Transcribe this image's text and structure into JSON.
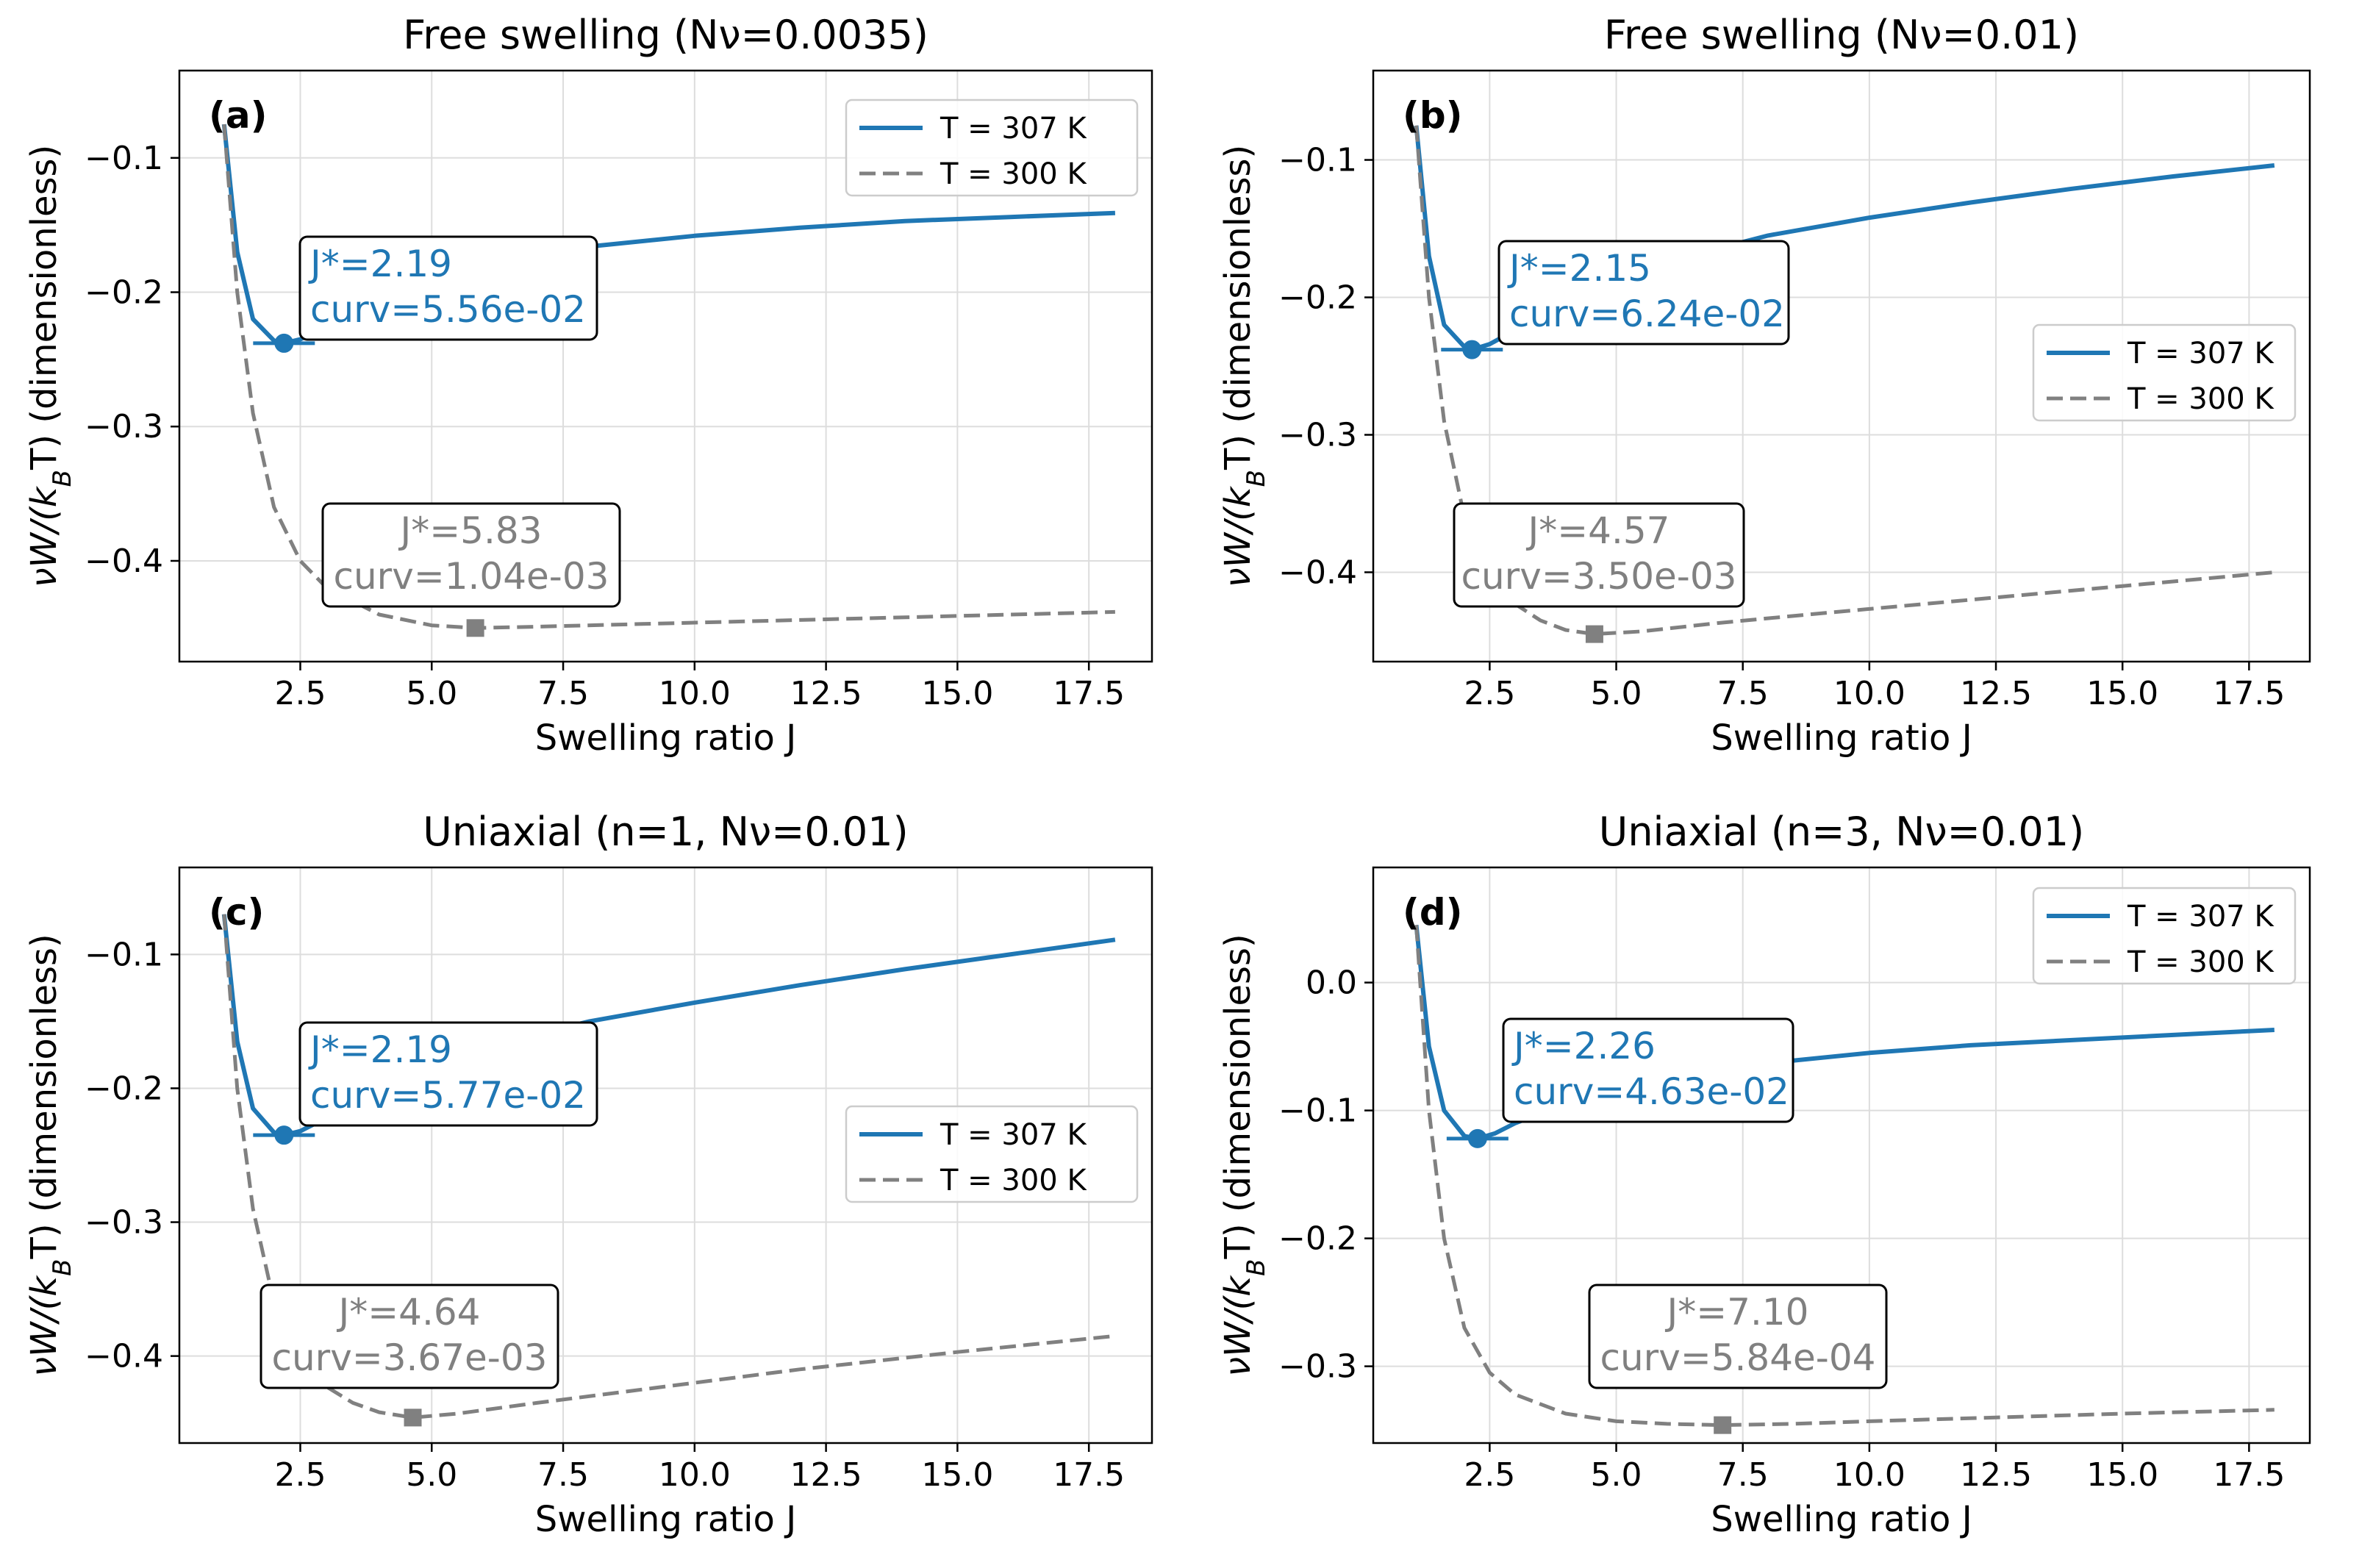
{
  "figure": {
    "colors": {
      "t307": "#1f77b4",
      "t300": "#808080",
      "grid": "#dddddd",
      "axes": "#000000"
    }
  },
  "chart_data": [
    {
      "type": "line",
      "panel_label": "(a)",
      "title": "Free swelling (Nν=0.0035)",
      "xlabel": "Swelling ratio J",
      "ylabel": "νW/(k_BT) (dimensionless)",
      "xlim": [
        0.2,
        18.7
      ],
      "ylim": [
        -0.475,
        -0.035
      ],
      "xticks": [
        2.5,
        5.0,
        7.5,
        10.0,
        12.5,
        15.0,
        17.5
      ],
      "xtick_labels": [
        "2.5",
        "5.0",
        "7.5",
        "10.0",
        "12.5",
        "15.0",
        "17.5"
      ],
      "yticks": [
        -0.1,
        -0.2,
        -0.3,
        -0.4
      ],
      "ytick_labels": [
        "−0.1",
        "−0.2",
        "−0.3",
        "−0.4"
      ],
      "grid": true,
      "legend_position": "top-right",
      "series": [
        {
          "name": "T = 307 K",
          "style": "solid",
          "color": "#1f77b4",
          "x": [
            1.05,
            1.3,
            1.6,
            2.0,
            2.19,
            2.5,
            3.0,
            4.0,
            5.0,
            6.0,
            8.0,
            10.0,
            12.0,
            14.0,
            16.0,
            18.0
          ],
          "y": [
            -0.075,
            -0.17,
            -0.22,
            -0.236,
            -0.238,
            -0.235,
            -0.226,
            -0.206,
            -0.19,
            -0.18,
            -0.166,
            -0.158,
            -0.152,
            -0.147,
            -0.144,
            -0.141
          ],
          "minimum": {
            "x": 2.19,
            "y": -0.238
          }
        },
        {
          "name": "T = 300 K",
          "style": "dashed",
          "color": "#808080",
          "x": [
            1.05,
            1.3,
            1.6,
            2.0,
            2.5,
            3.0,
            4.0,
            5.0,
            5.83,
            7.0,
            9.0,
            12.0,
            15.0,
            18.0
          ],
          "y": [
            -0.075,
            -0.2,
            -0.29,
            -0.36,
            -0.4,
            -0.42,
            -0.44,
            -0.448,
            -0.45,
            -0.449,
            -0.447,
            -0.444,
            -0.441,
            -0.438
          ],
          "minimum": {
            "x": 5.83,
            "y": -0.45
          }
        }
      ],
      "annotations": [
        {
          "series": "T = 307 K",
          "lines": [
            "J*=2.19",
            "curv=5.56e-02"
          ],
          "color": "#1f77b4"
        },
        {
          "series": "T = 300 K",
          "lines": [
            "J*=5.83",
            "curv=1.04e-03"
          ],
          "color": "#808080"
        }
      ]
    },
    {
      "type": "line",
      "panel_label": "(b)",
      "title": "Free swelling (Nν=0.01)",
      "xlabel": "Swelling ratio J",
      "ylabel": "νW/(k_BT) (dimensionless)",
      "xlim": [
        0.2,
        18.7
      ],
      "ylim": [
        -0.465,
        -0.035
      ],
      "xticks": [
        2.5,
        5.0,
        7.5,
        10.0,
        12.5,
        15.0,
        17.5
      ],
      "xtick_labels": [
        "2.5",
        "5.0",
        "7.5",
        "10.0",
        "12.5",
        "15.0",
        "17.5"
      ],
      "yticks": [
        -0.1,
        -0.2,
        -0.3,
        -0.4
      ],
      "ytick_labels": [
        "−0.1",
        "−0.2",
        "−0.3",
        "−0.4"
      ],
      "grid": true,
      "legend_position": "center-right",
      "series": [
        {
          "name": "T = 307 K",
          "style": "solid",
          "color": "#1f77b4",
          "x": [
            1.05,
            1.3,
            1.6,
            2.0,
            2.15,
            2.5,
            3.0,
            4.0,
            5.0,
            6.0,
            8.0,
            10.0,
            12.0,
            14.0,
            16.0,
            18.0
          ],
          "y": [
            -0.075,
            -0.17,
            -0.22,
            -0.236,
            -0.238,
            -0.234,
            -0.224,
            -0.203,
            -0.187,
            -0.174,
            -0.155,
            -0.142,
            -0.131,
            -0.121,
            -0.112,
            -0.104
          ],
          "minimum": {
            "x": 2.15,
            "y": -0.238
          }
        },
        {
          "name": "T = 300 K",
          "style": "dashed",
          "color": "#808080",
          "x": [
            1.05,
            1.3,
            1.6,
            2.0,
            2.5,
            3.0,
            3.5,
            4.0,
            4.57,
            5.5,
            7.0,
            9.0,
            12.0,
            15.0,
            18.0
          ],
          "y": [
            -0.075,
            -0.2,
            -0.29,
            -0.36,
            -0.4,
            -0.423,
            -0.435,
            -0.442,
            -0.445,
            -0.443,
            -0.437,
            -0.43,
            -0.42,
            -0.41,
            -0.4
          ],
          "minimum": {
            "x": 4.57,
            "y": -0.445
          }
        }
      ],
      "annotations": [
        {
          "series": "T = 307 K",
          "lines": [
            "J*=2.15",
            "curv=6.24e-02"
          ],
          "color": "#1f77b4"
        },
        {
          "series": "T = 300 K",
          "lines": [
            "J*=4.57",
            "curv=3.50e-03"
          ],
          "color": "#808080"
        }
      ]
    },
    {
      "type": "line",
      "panel_label": "(c)",
      "title": "Uniaxial (n=1, Nν=0.01)",
      "xlabel": "Swelling ratio J",
      "ylabel": "νW/(k_BT) (dimensionless)",
      "xlim": [
        0.2,
        18.7
      ],
      "ylim": [
        -0.465,
        -0.035
      ],
      "xticks": [
        2.5,
        5.0,
        7.5,
        10.0,
        12.5,
        15.0,
        17.5
      ],
      "xtick_labels": [
        "2.5",
        "5.0",
        "7.5",
        "10.0",
        "12.5",
        "15.0",
        "17.5"
      ],
      "yticks": [
        -0.1,
        -0.2,
        -0.3,
        -0.4
      ],
      "ytick_labels": [
        "−0.1",
        "−0.2",
        "−0.3",
        "−0.4"
      ],
      "grid": true,
      "legend_position": "center-right",
      "series": [
        {
          "name": "T = 307 K",
          "style": "solid",
          "color": "#1f77b4",
          "x": [
            1.05,
            1.3,
            1.6,
            2.0,
            2.19,
            2.5,
            3.0,
            4.0,
            5.0,
            6.0,
            8.0,
            10.0,
            12.0,
            14.0,
            16.0,
            18.0
          ],
          "y": [
            -0.07,
            -0.165,
            -0.215,
            -0.233,
            -0.235,
            -0.232,
            -0.222,
            -0.2,
            -0.183,
            -0.169,
            -0.15,
            -0.136,
            -0.123,
            -0.111,
            -0.1,
            -0.089
          ],
          "minimum": {
            "x": 2.19,
            "y": -0.235
          }
        },
        {
          "name": "T = 300 K",
          "style": "dashed",
          "color": "#808080",
          "x": [
            1.05,
            1.3,
            1.6,
            2.0,
            2.5,
            3.0,
            3.5,
            4.0,
            4.64,
            5.5,
            7.0,
            9.0,
            12.0,
            15.0,
            18.0
          ],
          "y": [
            -0.07,
            -0.2,
            -0.29,
            -0.36,
            -0.4,
            -0.423,
            -0.435,
            -0.442,
            -0.446,
            -0.443,
            -0.435,
            -0.425,
            -0.41,
            -0.397,
            -0.385
          ],
          "minimum": {
            "x": 4.64,
            "y": -0.446
          }
        }
      ],
      "annotations": [
        {
          "series": "T = 307 K",
          "lines": [
            "J*=2.19",
            "curv=5.77e-02"
          ],
          "color": "#1f77b4"
        },
        {
          "series": "T = 300 K",
          "lines": [
            "J*=4.64",
            "curv=3.67e-03"
          ],
          "color": "#808080"
        }
      ]
    },
    {
      "type": "line",
      "panel_label": "(d)",
      "title": "Uniaxial (n=3, Nν=0.01)",
      "xlabel": "Swelling ratio J",
      "ylabel": "νW/(k_BT) (dimensionless)",
      "xlim": [
        0.2,
        18.7
      ],
      "ylim": [
        -0.36,
        0.09
      ],
      "xticks": [
        2.5,
        5.0,
        7.5,
        10.0,
        12.5,
        15.0,
        17.5
      ],
      "xtick_labels": [
        "2.5",
        "5.0",
        "7.5",
        "10.0",
        "12.5",
        "15.0",
        "17.5"
      ],
      "yticks": [
        0.0,
        -0.1,
        -0.2,
        -0.3
      ],
      "ytick_labels": [
        "0.0",
        "−0.1",
        "−0.2",
        "−0.3"
      ],
      "grid": true,
      "legend_position": "top-right",
      "series": [
        {
          "name": "T = 307 K",
          "style": "solid",
          "color": "#1f77b4",
          "x": [
            1.05,
            1.3,
            1.6,
            2.0,
            2.26,
            2.6,
            3.0,
            4.0,
            5.0,
            6.0,
            8.0,
            10.0,
            12.0,
            14.0,
            16.0,
            18.0
          ],
          "y": [
            0.045,
            -0.05,
            -0.1,
            -0.12,
            -0.122,
            -0.118,
            -0.11,
            -0.095,
            -0.083,
            -0.075,
            -0.063,
            -0.055,
            -0.049,
            -0.045,
            -0.041,
            -0.037
          ],
          "minimum": {
            "x": 2.26,
            "y": -0.122
          }
        },
        {
          "name": "T = 300 K",
          "style": "dashed",
          "color": "#808080",
          "x": [
            1.05,
            1.3,
            1.6,
            2.0,
            2.5,
            3.0,
            4.0,
            5.0,
            6.0,
            7.1,
            8.5,
            10.0,
            12.5,
            15.0,
            18.0
          ],
          "y": [
            0.045,
            -0.1,
            -0.2,
            -0.27,
            -0.305,
            -0.322,
            -0.337,
            -0.343,
            -0.345,
            -0.346,
            -0.345,
            -0.343,
            -0.34,
            -0.337,
            -0.334
          ],
          "minimum": {
            "x": 7.1,
            "y": -0.346
          }
        }
      ],
      "annotations": [
        {
          "series": "T = 307 K",
          "lines": [
            "J*=2.26",
            "curv=4.63e-02"
          ],
          "color": "#1f77b4"
        },
        {
          "series": "T = 300 K",
          "lines": [
            "J*=7.10",
            "curv=5.84e-04"
          ],
          "color": "#808080"
        }
      ]
    }
  ]
}
